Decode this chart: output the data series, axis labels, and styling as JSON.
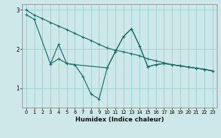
{
  "xlabel": "Humidex (Indice chaleur)",
  "bg_color": "#cce8e8",
  "grid_color": "#99cccc",
  "line_color": "#1a6b6b",
  "xlim": [
    -0.5,
    23.5
  ],
  "ylim": [
    0.5,
    3.15
  ],
  "yticks": [
    1,
    2,
    3
  ],
  "xticks": [
    0,
    1,
    2,
    3,
    4,
    5,
    6,
    7,
    8,
    9,
    10,
    11,
    12,
    13,
    14,
    15,
    16,
    17,
    18,
    19,
    20,
    21,
    22,
    23
  ],
  "line1_x": [
    0,
    1,
    2,
    3,
    4,
    5,
    6,
    7,
    8,
    9,
    10,
    11,
    12,
    13,
    14,
    15,
    16,
    17,
    18,
    19,
    20,
    21,
    22,
    23
  ],
  "line1_y": [
    3.0,
    2.87,
    2.78,
    2.68,
    2.59,
    2.5,
    2.4,
    2.31,
    2.22,
    2.12,
    2.03,
    1.97,
    1.93,
    1.88,
    1.83,
    1.75,
    1.7,
    1.65,
    1.6,
    1.57,
    1.54,
    1.51,
    1.48,
    1.44
  ],
  "line2_x": [
    0,
    1,
    3,
    4,
    5,
    6,
    10,
    11,
    12,
    13,
    14,
    15,
    16,
    17,
    18,
    19,
    20,
    21,
    22,
    23
  ],
  "line2_y": [
    2.88,
    2.76,
    1.62,
    2.12,
    1.63,
    1.6,
    1.52,
    1.93,
    2.32,
    2.52,
    2.08,
    1.55,
    1.6,
    1.63,
    1.6,
    1.57,
    1.54,
    1.51,
    1.48,
    1.44
  ],
  "line3_x": [
    3,
    4,
    5,
    6,
    7,
    8,
    9,
    10,
    11,
    12,
    13,
    14,
    15,
    16,
    17,
    18,
    19,
    20,
    21,
    22,
    23
  ],
  "line3_y": [
    1.62,
    1.75,
    1.63,
    1.6,
    1.3,
    0.85,
    0.72,
    1.52,
    1.93,
    2.32,
    2.52,
    2.08,
    1.55,
    1.6,
    1.63,
    1.6,
    1.57,
    1.54,
    1.51,
    1.48,
    1.44
  ]
}
